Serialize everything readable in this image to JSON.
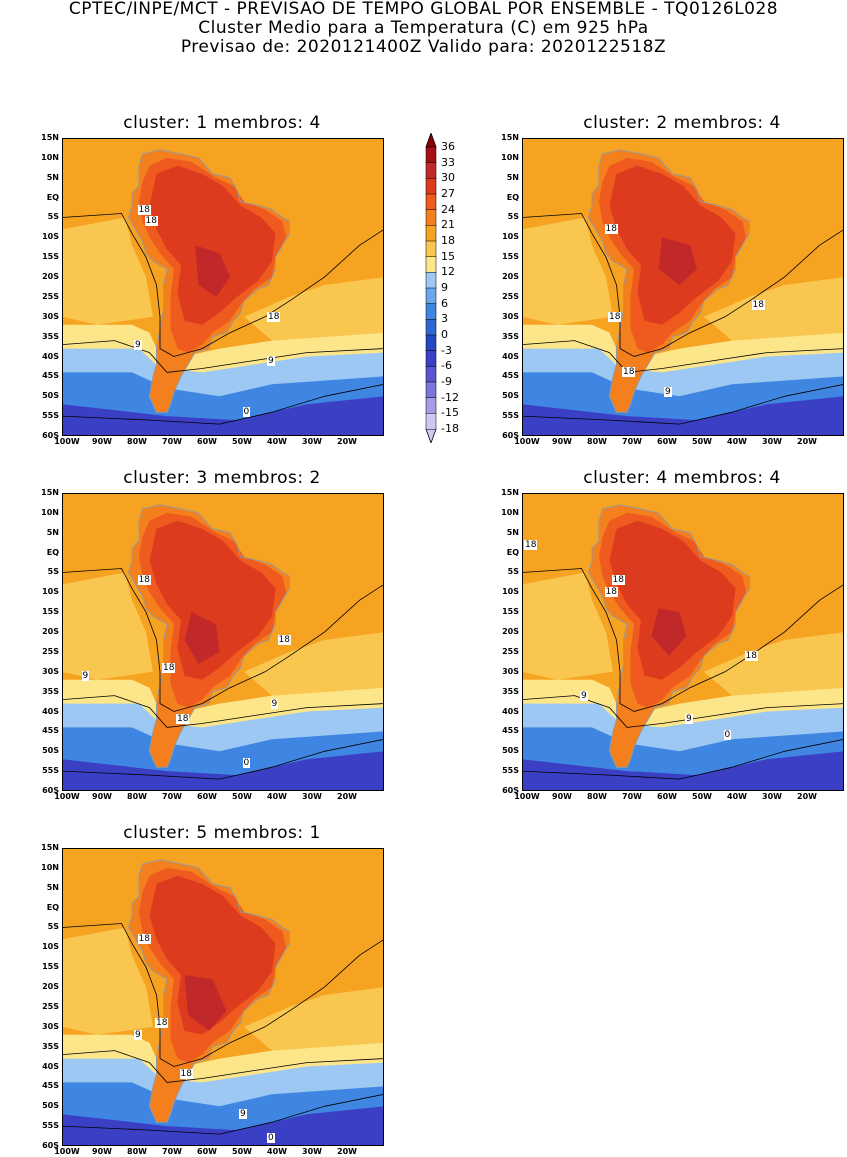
{
  "header": {
    "line1": "CPTEC/INPE/MCT - PREVISAO DE TEMPO GLOBAL POR ENSEMBLE - TQ0126L028",
    "line2": "Cluster Medio para a Temperatura (C) em 925 hPa",
    "line3": "Previsao de: 2020121400Z   Valido para: 2020122518Z"
  },
  "lat_labels": [
    "15N",
    "10N",
    "5N",
    "EQ",
    "5S",
    "10S",
    "15S",
    "20S",
    "25S",
    "30S",
    "35S",
    "40S",
    "45S",
    "50S",
    "55S",
    "60S"
  ],
  "lon_labels": [
    "100W",
    "90W",
    "80W",
    "70W",
    "60W",
    "50W",
    "40W",
    "30W",
    "20W"
  ],
  "colorbar": {
    "ticks": [
      "36",
      "33",
      "30",
      "27",
      "24",
      "21",
      "18",
      "15",
      "12",
      "9",
      "6",
      "3",
      "0",
      "-3",
      "-6",
      "-9",
      "-12",
      "-15",
      "-18"
    ],
    "colors": [
      "#8b0000",
      "#a50f15",
      "#c0282a",
      "#dd3b1e",
      "#ef5a1e",
      "#f47f1d",
      "#f6a321",
      "#f9c74f",
      "#fde68a",
      "#9cc8f3",
      "#6aa6ec",
      "#3f86e3",
      "#2f67d2",
      "#2348bf",
      "#3b3fc4",
      "#5a54cf",
      "#7d76da",
      "#a59de6",
      "#cfc8f2"
    ]
  },
  "panels": [
    {
      "title": "cluster: 1   membros: 4",
      "contour_labels": [
        {
          "text": "18",
          "lon": -77,
          "lat": -3
        },
        {
          "text": "18",
          "lon": -75,
          "lat": -6
        },
        {
          "text": "18",
          "lon": -40,
          "lat": -30
        },
        {
          "text": "9",
          "lon": -78,
          "lat": -37
        },
        {
          "text": "9",
          "lon": -40,
          "lat": -41
        },
        {
          "text": "0",
          "lon": -47,
          "lat": -54
        }
      ]
    },
    {
      "title": "cluster: 2   membros: 4",
      "contour_labels": [
        {
          "text": "18",
          "lon": -75,
          "lat": -8
        },
        {
          "text": "18",
          "lon": -74,
          "lat": -30
        },
        {
          "text": "18",
          "lon": -33,
          "lat": -27
        },
        {
          "text": "18",
          "lon": -70,
          "lat": -44
        },
        {
          "text": "9",
          "lon": -58,
          "lat": -49
        }
      ]
    },
    {
      "title": "cluster: 3   membros: 2",
      "contour_labels": [
        {
          "text": "18",
          "lon": -77,
          "lat": -7
        },
        {
          "text": "18",
          "lon": -70,
          "lat": -29
        },
        {
          "text": "18",
          "lon": -37,
          "lat": -22
        },
        {
          "text": "18",
          "lon": -66,
          "lat": -42
        },
        {
          "text": "9",
          "lon": -93,
          "lat": -31
        },
        {
          "text": "9",
          "lon": -39,
          "lat": -38
        },
        {
          "text": "0",
          "lon": -47,
          "lat": -53
        }
      ]
    },
    {
      "title": "cluster: 4   membros: 4",
      "contour_labels": [
        {
          "text": "18",
          "lon": -98,
          "lat": 2
        },
        {
          "text": "18",
          "lon": -73,
          "lat": -7
        },
        {
          "text": "18",
          "lon": -75,
          "lat": -10
        },
        {
          "text": "18",
          "lon": -35,
          "lat": -26
        },
        {
          "text": "9",
          "lon": -82,
          "lat": -36
        },
        {
          "text": "9",
          "lon": -52,
          "lat": -42
        },
        {
          "text": "0",
          "lon": -41,
          "lat": -46
        }
      ]
    },
    {
      "title": "cluster: 5   membros: 1",
      "contour_labels": [
        {
          "text": "18",
          "lon": -77,
          "lat": -8
        },
        {
          "text": "18",
          "lon": -72,
          "lat": -29
        },
        {
          "text": "18",
          "lon": -65,
          "lat": -42
        },
        {
          "text": "9",
          "lon": -78,
          "lat": -32
        },
        {
          "text": "9",
          "lon": -48,
          "lat": -52
        },
        {
          "text": "0",
          "lon": -40,
          "lat": -58
        }
      ]
    }
  ]
}
